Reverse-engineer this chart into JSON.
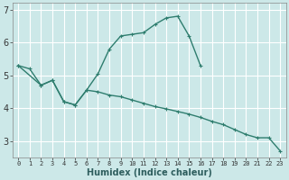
{
  "xlabel": "Humidex (Indice chaleur)",
  "bg_color": "#cce8e8",
  "grid_color": "#ffffff",
  "line_color": "#2e7d6e",
  "line1_x": [
    0,
    1,
    2,
    3,
    4,
    5,
    6,
    7,
    8,
    9,
    10,
    11,
    12,
    13,
    14,
    15,
    16,
    17,
    18
  ],
  "line1_y": [
    5.3,
    5.2,
    4.7,
    4.85,
    4.2,
    4.1,
    4.55,
    5.05,
    5.8,
    6.2,
    6.25,
    6.3,
    6.55,
    6.75,
    6.8,
    6.2,
    5.3,
    null,
    null
  ],
  "line2_x": [
    0,
    1,
    2,
    3,
    4,
    5,
    6,
    7,
    8,
    9,
    10,
    11,
    12,
    13,
    14,
    15,
    16,
    17,
    18,
    19,
    20,
    21,
    22,
    23
  ],
  "line2_y": [
    5.3,
    null,
    4.7,
    4.85,
    4.2,
    4.1,
    4.55,
    4.5,
    4.4,
    4.35,
    4.25,
    4.15,
    4.05,
    3.98,
    3.9,
    3.82,
    3.72,
    3.6,
    3.5,
    3.35,
    3.2,
    3.1,
    3.1,
    2.7
  ],
  "ylim": [
    2.5,
    7.2
  ],
  "xlim": [
    -0.5,
    23.5
  ],
  "yticks": [
    3,
    4,
    5,
    6,
    7
  ],
  "xticks": [
    0,
    1,
    2,
    3,
    4,
    5,
    6,
    7,
    8,
    9,
    10,
    11,
    12,
    13,
    14,
    15,
    16,
    17,
    18,
    19,
    20,
    21,
    22,
    23
  ],
  "xlabel_fontsize": 7,
  "ytick_fontsize": 7,
  "xtick_fontsize": 5
}
